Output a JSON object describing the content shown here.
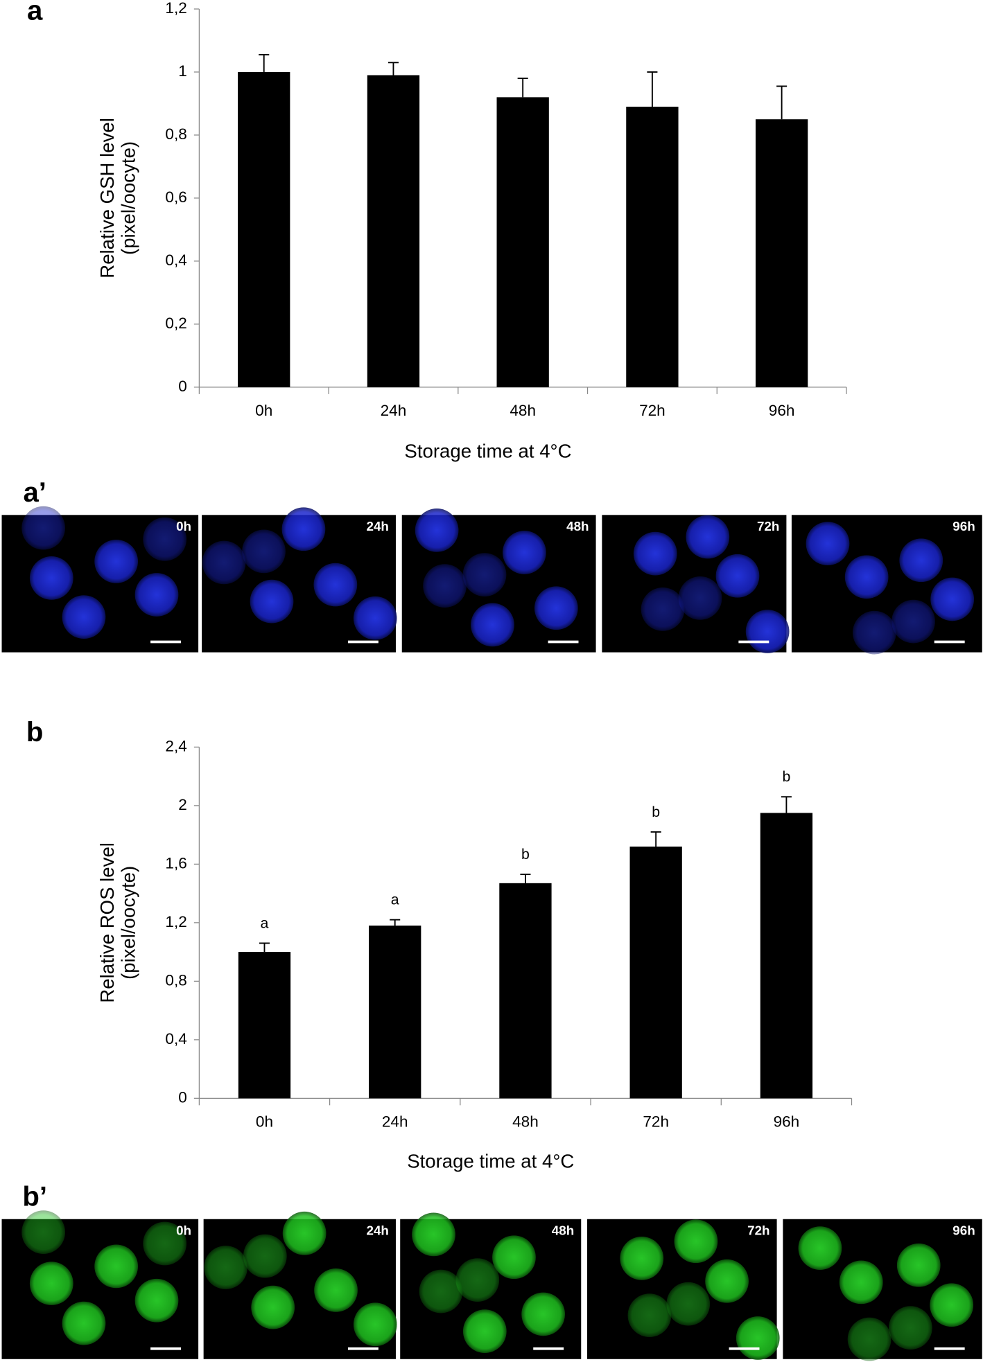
{
  "chart_data": [
    {
      "type": "bar",
      "panel_label": "a",
      "ylabel": [
        "Relative GSH level",
        "(pixel/oocyte)"
      ],
      "xlabel": "Storage time at 4°C",
      "categories": [
        "0h",
        "24h",
        "48h",
        "72h",
        "96h"
      ],
      "values": [
        1.0,
        0.99,
        0.92,
        0.89,
        0.85
      ],
      "errors": [
        0.055,
        0.04,
        0.06,
        0.11,
        0.105
      ],
      "color": "#000000",
      "ylim": [
        0,
        1.2
      ],
      "yticks": [
        0,
        {
          "value": 0.2,
          "label": "0,2"
        },
        {
          "value": 0.4,
          "label": "0,4"
        },
        {
          "value": 0.6,
          "label": "0,6"
        },
        {
          "value": 0.8,
          "label": "0,8"
        },
        1,
        {
          "value": 1.2,
          "label": "1,2"
        }
      ]
    },
    {
      "type": "bar",
      "panel_label": "b",
      "ylabel": [
        "Relative ROS level",
        "(pixel/oocyte)"
      ],
      "xlabel": "Storage time at 4°C",
      "categories": [
        "0h",
        "24h",
        "48h",
        "72h",
        "96h"
      ],
      "values": [
        1.0,
        1.18,
        1.47,
        1.72,
        1.95
      ],
      "errors": [
        0.06,
        0.04,
        0.06,
        0.1,
        0.11
      ],
      "annotations": [
        "a",
        "a",
        "b",
        "b",
        "b"
      ],
      "color": "#000000",
      "ylim": [
        0,
        2.4
      ],
      "yticks": [
        0,
        {
          "value": 0.4,
          "label": "0,4"
        },
        {
          "value": 0.8,
          "label": "0,8"
        },
        {
          "value": 1.2,
          "label": "1,2"
        },
        {
          "value": 1.6,
          "label": "1,6"
        },
        2,
        {
          "value": 2.4,
          "label": "2,4"
        }
      ]
    }
  ],
  "image_rows": [
    {
      "label": "a’",
      "captions": [
        "0h",
        "24h",
        "48h",
        "72h",
        "96h"
      ]
    },
    {
      "label": "b’",
      "captions": [
        "0h",
        "24h",
        "48h",
        "72h",
        "96h"
      ]
    }
  ]
}
